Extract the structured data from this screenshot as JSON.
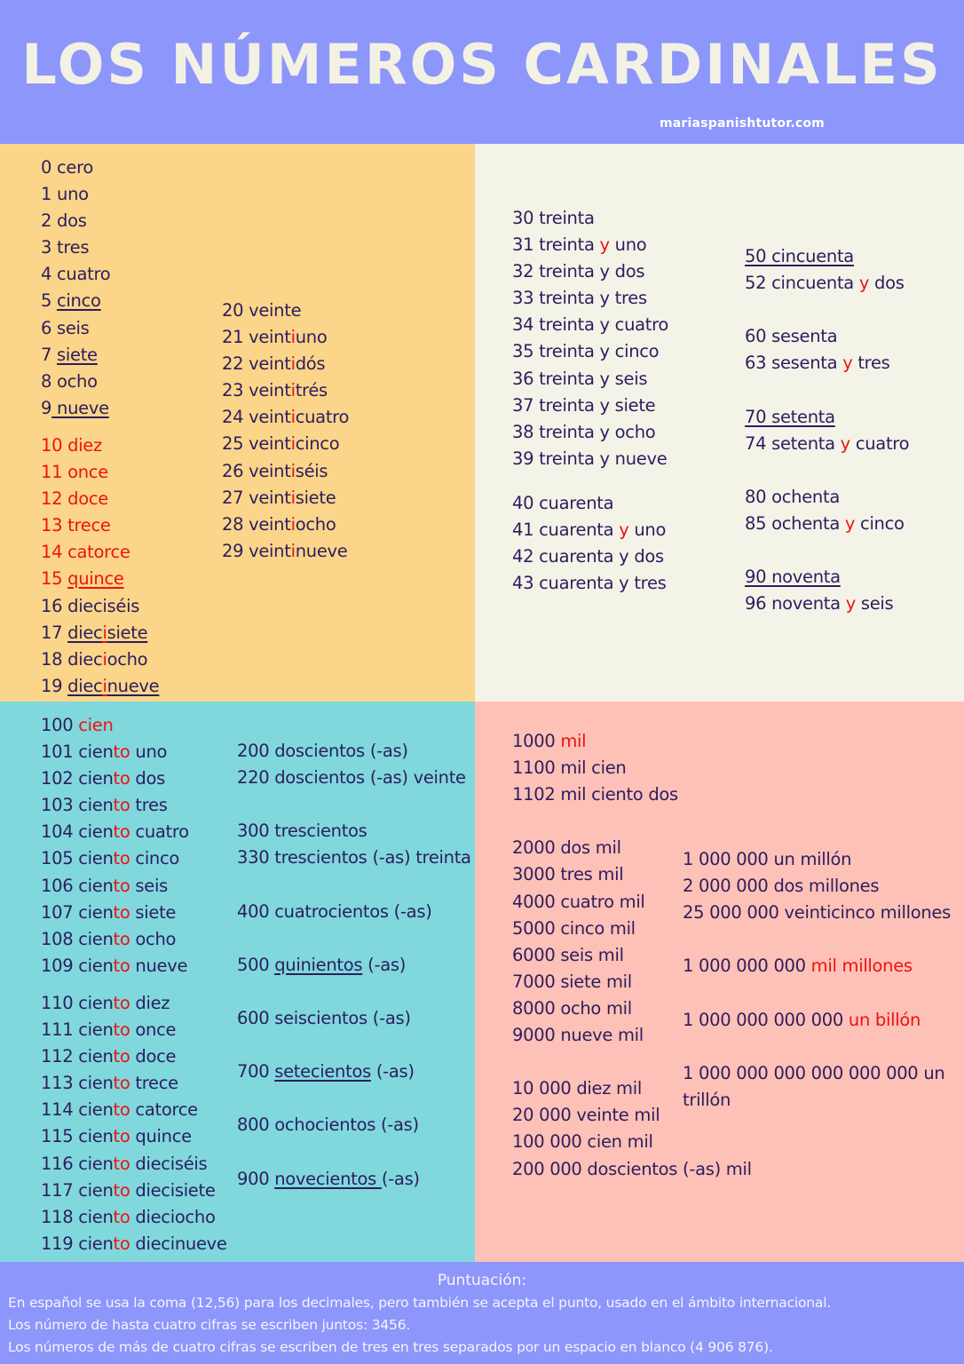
{
  "header": {
    "title": "LOS NÚMEROS CARDINALES",
    "site": "mariaspanishtutor.com"
  },
  "colors": {
    "header_bg": "#8c96fb",
    "title_text": "#f3f1e4",
    "text": "#2c1d5e",
    "highlight": "#ee1111",
    "quad_top_left": "#fbd589",
    "quad_top_right": "#f4f3e8",
    "quad_bottom_left": "#80d8dc",
    "quad_bottom_right": "#fec1b7"
  },
  "quadrants": {
    "top_left": {
      "col1": [
        [
          {
            "t": "0 cero"
          }
        ],
        [
          {
            "t": "1 uno"
          }
        ],
        [
          {
            "t": "2 dos"
          }
        ],
        [
          {
            "t": "3 tres"
          }
        ],
        [
          {
            "t": "4 cuatro"
          }
        ],
        [
          {
            "t": "5 "
          },
          {
            "t": "cinco",
            "u": true
          }
        ],
        [
          {
            "t": "6 seis"
          }
        ],
        [
          {
            "t": "7 "
          },
          {
            "t": "siete",
            "u": true
          }
        ],
        [
          {
            "t": "8 ocho"
          }
        ],
        [
          {
            "t": "9"
          },
          {
            "t": " nueve",
            "u": true
          }
        ],
        "gap-s",
        [
          {
            "t": "10 diez",
            "r": true
          }
        ],
        [
          {
            "t": "11 once",
            "r": true
          }
        ],
        [
          {
            "t": "12 doce",
            "r": true
          }
        ],
        [
          {
            "t": "13 trece",
            "r": true
          }
        ],
        [
          {
            "t": "14 catorce",
            "r": true
          }
        ],
        [
          {
            "t": "15 ",
            "r": true
          },
          {
            "t": "quince",
            "r": true,
            "u": true
          }
        ],
        [
          {
            "t": "16 dieci"
          },
          {
            "t": "",
            "r": true
          },
          {
            "t": "séis"
          }
        ],
        [
          {
            "t": "17 "
          },
          {
            "t": "diec",
            "u": true
          },
          {
            "t": "i",
            "r": true,
            "u": true
          },
          {
            "t": "siete",
            "u": true
          }
        ],
        [
          {
            "t": "18 diec"
          },
          {
            "t": "i",
            "r": true
          },
          {
            "t": "ocho"
          }
        ],
        [
          {
            "t": "19 "
          },
          {
            "t": "diec",
            "u": true
          },
          {
            "t": "i",
            "r": true,
            "u": true
          },
          {
            "t": "nueve",
            "u": true
          }
        ]
      ],
      "col2": [
        [
          {
            "t": "20 veinte"
          }
        ],
        [
          {
            "t": "21 veint"
          },
          {
            "t": "i",
            "r": true
          },
          {
            "t": "uno"
          }
        ],
        [
          {
            "t": "22 veint"
          },
          {
            "t": "i",
            "r": true
          },
          {
            "t": "dós"
          }
        ],
        [
          {
            "t": "23 veint"
          },
          {
            "t": "i",
            "r": true
          },
          {
            "t": "trés"
          }
        ],
        [
          {
            "t": "24 veint"
          },
          {
            "t": "i",
            "r": true
          },
          {
            "t": "cuatro"
          }
        ],
        [
          {
            "t": "25 veint"
          },
          {
            "t": "i",
            "r": true
          },
          {
            "t": "cinco"
          }
        ],
        [
          {
            "t": "26 veint"
          },
          {
            "t": "i",
            "r": true
          },
          {
            "t": "séis"
          }
        ],
        [
          {
            "t": "27 veint"
          },
          {
            "t": "i",
            "r": true
          },
          {
            "t": "siete"
          }
        ],
        [
          {
            "t": "28 veint"
          },
          {
            "t": "i",
            "r": true
          },
          {
            "t": "ocho"
          }
        ],
        [
          {
            "t": "29 veint"
          },
          {
            "t": "i",
            "r": true
          },
          {
            "t": "nueve"
          }
        ]
      ]
    },
    "top_right": {
      "col1": [
        [
          {
            "t": "30 treinta"
          }
        ],
        [
          {
            "t": "31 treinta "
          },
          {
            "t": "y",
            "r": true
          },
          {
            "t": " uno"
          }
        ],
        [
          {
            "t": "32 treinta y dos"
          }
        ],
        [
          {
            "t": "33 treinta y tres"
          }
        ],
        [
          {
            "t": "34 treinta y cuatro"
          }
        ],
        [
          {
            "t": "35 treinta y cinco"
          }
        ],
        [
          {
            "t": "36 treinta y seis"
          }
        ],
        [
          {
            "t": "37 treinta y siete"
          }
        ],
        [
          {
            "t": "38 treinta y ocho"
          }
        ],
        [
          {
            "t": "39 treinta y nueve"
          }
        ],
        "gap-m",
        [
          {
            "t": "40 cuarenta"
          }
        ],
        [
          {
            "t": "41 cuarenta "
          },
          {
            "t": "y",
            "r": true
          },
          {
            "t": " uno"
          }
        ],
        [
          {
            "t": "42 cuarenta y dos"
          }
        ],
        [
          {
            "t": "43 cuarenta y tres"
          }
        ]
      ],
      "col2": [
        [
          {
            "t": "50 cincuenta",
            "u": true
          }
        ],
        [
          {
            "t": "52 cincuenta "
          },
          {
            "t": "y",
            "r": true
          },
          {
            "t": " dos"
          }
        ],
        "gap",
        [
          {
            "t": "60 sesenta"
          }
        ],
        [
          {
            "t": "63 sesenta "
          },
          {
            "t": "y",
            "r": true
          },
          {
            "t": " tres"
          }
        ],
        "gap",
        [
          {
            "t": "70 setenta",
            "u": true
          }
        ],
        [
          {
            "t": "74 setenta "
          },
          {
            "t": "y",
            "r": true
          },
          {
            "t": " cuatro"
          }
        ],
        "gap",
        [
          {
            "t": "80 ochenta"
          }
        ],
        [
          {
            "t": "85 ochenta "
          },
          {
            "t": "y",
            "r": true
          },
          {
            "t": " cinco"
          }
        ],
        "gap",
        [
          {
            "t": "90 noventa ",
            "u": true
          }
        ],
        [
          {
            "t": "96 noventa "
          },
          {
            "t": "y",
            "r": true
          },
          {
            "t": " seis"
          }
        ]
      ]
    },
    "bottom_left": {
      "col1": [
        [
          {
            "t": "100 "
          },
          {
            "t": "cien",
            "r": true
          }
        ],
        [
          {
            "t": "101 cien"
          },
          {
            "t": "to",
            "r": true
          },
          {
            "t": " uno"
          }
        ],
        [
          {
            "t": "102 cien"
          },
          {
            "t": "to",
            "r": true
          },
          {
            "t": " dos"
          }
        ],
        [
          {
            "t": "103 cien"
          },
          {
            "t": "to",
            "r": true
          },
          {
            "t": " tres"
          }
        ],
        [
          {
            "t": "104 cien"
          },
          {
            "t": "to",
            "r": true
          },
          {
            "t": " cuatro"
          }
        ],
        [
          {
            "t": "105 cien"
          },
          {
            "t": "to",
            "r": true
          },
          {
            "t": " cinco"
          }
        ],
        [
          {
            "t": "106 cien"
          },
          {
            "t": "to",
            "r": true
          },
          {
            "t": " seis"
          }
        ],
        [
          {
            "t": "107 cien"
          },
          {
            "t": "to",
            "r": true
          },
          {
            "t": " siete"
          }
        ],
        [
          {
            "t": "108 cien"
          },
          {
            "t": "to",
            "r": true
          },
          {
            "t": " ocho"
          }
        ],
        [
          {
            "t": "109 cien"
          },
          {
            "t": "to",
            "r": true
          },
          {
            "t": " nueve"
          }
        ],
        "gap-s",
        [
          {
            "t": "110 cien"
          },
          {
            "t": "to",
            "r": true
          },
          {
            "t": " diez"
          }
        ],
        [
          {
            "t": "111 cien"
          },
          {
            "t": "to",
            "r": true
          },
          {
            "t": " once"
          }
        ],
        [
          {
            "t": "112 cien"
          },
          {
            "t": "to",
            "r": true
          },
          {
            "t": " doce"
          }
        ],
        [
          {
            "t": "113 cien"
          },
          {
            "t": "to",
            "r": true
          },
          {
            "t": " trece"
          }
        ],
        [
          {
            "t": "114 cien"
          },
          {
            "t": "to",
            "r": true
          },
          {
            "t": " catorce"
          }
        ],
        [
          {
            "t": "115 cien"
          },
          {
            "t": "to",
            "r": true
          },
          {
            "t": " quince"
          }
        ],
        [
          {
            "t": "116 cien"
          },
          {
            "t": "to",
            "r": true
          },
          {
            "t": " dieciséis"
          }
        ],
        [
          {
            "t": "117 cien"
          },
          {
            "t": "to",
            "r": true
          },
          {
            "t": " diecisiete"
          }
        ],
        [
          {
            "t": "118 cien"
          },
          {
            "t": "to",
            "r": true
          },
          {
            "t": " dieciocho"
          }
        ],
        [
          {
            "t": "119 cien"
          },
          {
            "t": "to",
            "r": true
          },
          {
            "t": " diecinueve"
          }
        ]
      ],
      "col2": [
        [
          {
            "t": "200 doscientos (-as)"
          }
        ],
        [
          {
            "t": "220 doscientos (-as) veinte"
          }
        ],
        "gap",
        [
          {
            "t": "300 trescientos"
          }
        ],
        [
          {
            "t": "330 trescientos (-as) treinta"
          }
        ],
        "gap",
        [
          {
            "t": "400 cuatrocientos (-as)"
          }
        ],
        "gap",
        [
          {
            "t": "500 "
          },
          {
            "t": "quinientos",
            "u": true
          },
          {
            "t": " (-as)"
          }
        ],
        "gap",
        [
          {
            "t": "600 seiscientos (-as)"
          }
        ],
        "gap",
        [
          {
            "t": "700 "
          },
          {
            "t": "setecientos",
            "u": true
          },
          {
            "t": " (-as)"
          }
        ],
        "gap",
        [
          {
            "t": "800 ochocientos (-as)"
          }
        ],
        "gap",
        [
          {
            "t": "900 "
          },
          {
            "t": "novecientos ",
            "u": true
          },
          {
            "t": "(-as)"
          }
        ]
      ]
    },
    "bottom_right": {
      "col1": [
        [
          {
            "t": "1000 "
          },
          {
            "t": "mil",
            "r": true
          }
        ],
        [
          {
            "t": "1100 mil cien"
          }
        ],
        [
          {
            "t": "1102 mil ciento dos"
          }
        ],
        "gap",
        [
          {
            "t": "2000 dos mil"
          }
        ],
        [
          {
            "t": "3000 tres mil"
          }
        ],
        [
          {
            "t": "4000 cuatro mil"
          }
        ],
        [
          {
            "t": "5000 cinco mil"
          }
        ],
        [
          {
            "t": "6000 seis mil"
          }
        ],
        [
          {
            "t": "7000 siete mil"
          }
        ],
        [
          {
            "t": "8000 ocho mil"
          }
        ],
        [
          {
            "t": "9000 nueve mil"
          }
        ],
        "gap",
        [
          {
            "t": "10 000 diez mil"
          }
        ],
        [
          {
            "t": "20 000 veinte mil"
          }
        ],
        [
          {
            "t": "100 000 cien mil"
          }
        ],
        [
          {
            "t": "200 000 doscientos (-as) mil"
          }
        ]
      ],
      "col2": [
        [
          {
            "t": "1 000 000 un millón"
          }
        ],
        [
          {
            "t": "2 000 000 dos millones"
          }
        ],
        [
          {
            "t": "25 000 000 veinticinco millones"
          }
        ],
        "gap",
        [
          {
            "t": "1 000 000 000 "
          },
          {
            "t": "mil millones",
            "r": true
          }
        ],
        "gap",
        [
          {
            "t": "1 000 000 000 000 "
          },
          {
            "t": "un billón",
            "r": true
          }
        ],
        "gap",
        [
          {
            "t": "1 000 000 000 000 000 000 un"
          }
        ],
        [
          {
            "t": "trillón"
          }
        ]
      ]
    }
  },
  "footer": {
    "title": "Puntuación:",
    "lines": [
      "En  español se usa  la coma (12,56) para los decimales, pero también se acepta el punto, usado en el ámbito internacional.",
      "Los número de  hasta cuatro cifras se escriben juntos: 3456.",
      "Los  números de más de cuatro cifras se escriben de tres en tres  separados por un espacio en blanco (4 906 876)."
    ]
  }
}
